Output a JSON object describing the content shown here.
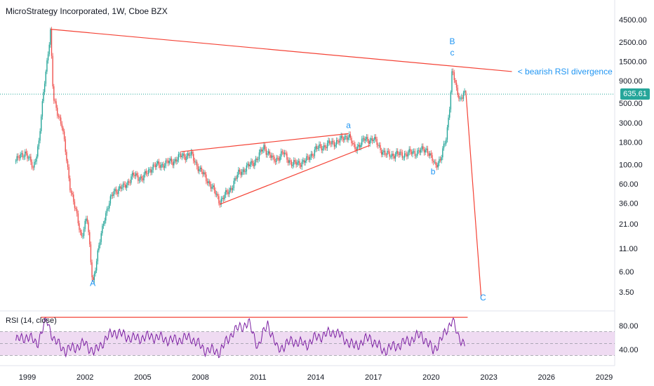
{
  "header": {
    "title": "MicroStrategy Incorporated, 1W, Cboe BZX"
  },
  "rsi_panel": {
    "title": "RSI (14, close)"
  },
  "price_tag": {
    "value": "635.61",
    "color": "#26a69a"
  },
  "colors": {
    "up": "#26a69a",
    "down": "#ef5350",
    "trendline": "#f44336",
    "annotation": "#2196f3",
    "rsi_line": "#7b1fa2",
    "rsi_band": "#e1bee7"
  },
  "chart_data": {
    "type": "candlestick",
    "title": "MicroStrategy Incorporated, 1W, Cboe BZX",
    "y_scale": "log",
    "y_ticks": [
      {
        "value": 4500,
        "label": "4500.00"
      },
      {
        "value": 2500,
        "label": "2500.00"
      },
      {
        "value": 1500,
        "label": "1500.00"
      },
      {
        "value": 900,
        "label": "900.00"
      },
      {
        "value": 500,
        "label": "500.00"
      },
      {
        "value": 300,
        "label": "300.00"
      },
      {
        "value": 180,
        "label": "180.00"
      },
      {
        "value": 100,
        "label": "100.00"
      },
      {
        "value": 60,
        "label": "60.00"
      },
      {
        "value": 36,
        "label": "36.00"
      },
      {
        "value": 21,
        "label": "21.00"
      },
      {
        "value": 11,
        "label": "11.00"
      },
      {
        "value": 6,
        "label": "6.00"
      },
      {
        "value": 3.5,
        "label": "3.50"
      }
    ],
    "x_ticks": [
      "1999",
      "2002",
      "2005",
      "2008",
      "2011",
      "2014",
      "2017",
      "2020",
      "2023",
      "2026",
      "2029"
    ],
    "price_path": [
      {
        "t": 1998.4,
        "v": 110
      },
      {
        "t": 1998.9,
        "v": 140
      },
      {
        "t": 1999.3,
        "v": 90
      },
      {
        "t": 1999.6,
        "v": 180
      },
      {
        "t": 1999.9,
        "v": 900
      },
      {
        "t": 2000.2,
        "v": 3300
      },
      {
        "t": 2000.35,
        "v": 550
      },
      {
        "t": 2000.8,
        "v": 280
      },
      {
        "t": 2001.2,
        "v": 60
      },
      {
        "t": 2001.5,
        "v": 30
      },
      {
        "t": 2001.8,
        "v": 15
      },
      {
        "t": 2002.1,
        "v": 25
      },
      {
        "t": 2002.4,
        "v": 4.5
      },
      {
        "t": 2002.6,
        "v": 8
      },
      {
        "t": 2003.0,
        "v": 25
      },
      {
        "t": 2003.5,
        "v": 50
      },
      {
        "t": 2004.0,
        "v": 55
      },
      {
        "t": 2004.5,
        "v": 75
      },
      {
        "t": 2005.0,
        "v": 70
      },
      {
        "t": 2005.5,
        "v": 95
      },
      {
        "t": 2006.0,
        "v": 100
      },
      {
        "t": 2006.6,
        "v": 110
      },
      {
        "t": 2007.0,
        "v": 125
      },
      {
        "t": 2007.5,
        "v": 130
      },
      {
        "t": 2008.0,
        "v": 85
      },
      {
        "t": 2008.5,
        "v": 60
      },
      {
        "t": 2009.0,
        "v": 38
      },
      {
        "t": 2009.5,
        "v": 50
      },
      {
        "t": 2010.0,
        "v": 80
      },
      {
        "t": 2010.5,
        "v": 95
      },
      {
        "t": 2011.0,
        "v": 120
      },
      {
        "t": 2011.3,
        "v": 160
      },
      {
        "t": 2011.8,
        "v": 110
      },
      {
        "t": 2012.3,
        "v": 135
      },
      {
        "t": 2012.8,
        "v": 100
      },
      {
        "t": 2013.5,
        "v": 110
      },
      {
        "t": 2014.0,
        "v": 150
      },
      {
        "t": 2014.5,
        "v": 165
      },
      {
        "t": 2015.3,
        "v": 190
      },
      {
        "t": 2015.7,
        "v": 220
      },
      {
        "t": 2016.0,
        "v": 150
      },
      {
        "t": 2016.5,
        "v": 190
      },
      {
        "t": 2017.0,
        "v": 195
      },
      {
        "t": 2017.6,
        "v": 130
      },
      {
        "t": 2018.5,
        "v": 130
      },
      {
        "t": 2019.3,
        "v": 140
      },
      {
        "t": 2019.8,
        "v": 150
      },
      {
        "t": 2020.2,
        "v": 95
      },
      {
        "t": 2020.5,
        "v": 120
      },
      {
        "t": 2020.8,
        "v": 200
      },
      {
        "t": 2021.0,
        "v": 600
      },
      {
        "t": 2021.1,
        "v": 1300
      },
      {
        "t": 2021.3,
        "v": 700
      },
      {
        "t": 2021.5,
        "v": 550
      },
      {
        "t": 2021.7,
        "v": 700
      },
      {
        "t": 2021.75,
        "v": 635.61
      }
    ],
    "rsi": {
      "name": "RSI (14, close)",
      "y_ticks": [
        {
          "value": 80,
          "label": "80.00"
        },
        {
          "value": 40,
          "label": "40.00"
        }
      ],
      "band": [
        30,
        70
      ],
      "path": [
        {
          "t": 1998.4,
          "v": 55
        },
        {
          "t": 1999.0,
          "v": 62
        },
        {
          "t": 1999.5,
          "v": 50
        },
        {
          "t": 2000.0,
          "v": 90
        },
        {
          "t": 2000.4,
          "v": 55
        },
        {
          "t": 2001.0,
          "v": 38
        },
        {
          "t": 2002.0,
          "v": 50
        },
        {
          "t": 2002.5,
          "v": 35
        },
        {
          "t": 2003.0,
          "v": 55
        },
        {
          "t": 2003.5,
          "v": 70
        },
        {
          "t": 2004.5,
          "v": 58
        },
        {
          "t": 2005.5,
          "v": 62
        },
        {
          "t": 2006.5,
          "v": 55
        },
        {
          "t": 2007.5,
          "v": 60
        },
        {
          "t": 2008.2,
          "v": 40
        },
        {
          "t": 2009.0,
          "v": 36
        },
        {
          "t": 2009.7,
          "v": 70
        },
        {
          "t": 2010.5,
          "v": 85
        },
        {
          "t": 2011.0,
          "v": 45
        },
        {
          "t": 2011.5,
          "v": 84
        },
        {
          "t": 2012.0,
          "v": 40
        },
        {
          "t": 2012.8,
          "v": 55
        },
        {
          "t": 2013.5,
          "v": 48
        },
        {
          "t": 2014.0,
          "v": 60
        },
        {
          "t": 2015.0,
          "v": 70
        },
        {
          "t": 2016.0,
          "v": 45
        },
        {
          "t": 2016.8,
          "v": 60
        },
        {
          "t": 2017.5,
          "v": 38
        },
        {
          "t": 2018.5,
          "v": 50
        },
        {
          "t": 2019.5,
          "v": 65
        },
        {
          "t": 2020.1,
          "v": 38
        },
        {
          "t": 2020.7,
          "v": 65
        },
        {
          "t": 2021.1,
          "v": 92
        },
        {
          "t": 2021.4,
          "v": 60
        },
        {
          "t": 2021.75,
          "v": 52
        }
      ]
    },
    "trendlines": [
      {
        "from": {
          "t": 2000.2,
          "v": 3500
        },
        "to": {
          "t": 2024.2,
          "v": 1150
        }
      },
      {
        "from": {
          "t": 2007.0,
          "v": 140
        },
        "to": {
          "t": 2015.7,
          "v": 225
        }
      },
      {
        "from": {
          "t": 2009.0,
          "v": 35
        },
        "to": {
          "t": 2016.8,
          "v": 165
        }
      },
      {
        "from": {
          "t": 2021.8,
          "v": 700
        },
        "to": {
          "t": 2022.6,
          "v": 3.1
        }
      }
    ],
    "rsi_trendline": {
      "from": {
        "t": 1999.7,
        "v": 94
      },
      "to": {
        "t": 2021.9,
        "v": 94
      }
    },
    "wave_labels": [
      {
        "text": "A",
        "t": 2002.4,
        "v": 4.1
      },
      {
        "text": "a",
        "t": 2015.7,
        "v": 260
      },
      {
        "text": "b",
        "t": 2020.1,
        "v": 77
      },
      {
        "text": "B",
        "t": 2021.1,
        "v": 2350
      },
      {
        "text": "c",
        "t": 2021.1,
        "v": 1750
      },
      {
        "text": "C",
        "t": 2022.7,
        "v": 2.8
      }
    ],
    "annotations": [
      {
        "text": "< bearish RSI divergence",
        "t": 2024.5,
        "v": 1150
      }
    ]
  }
}
